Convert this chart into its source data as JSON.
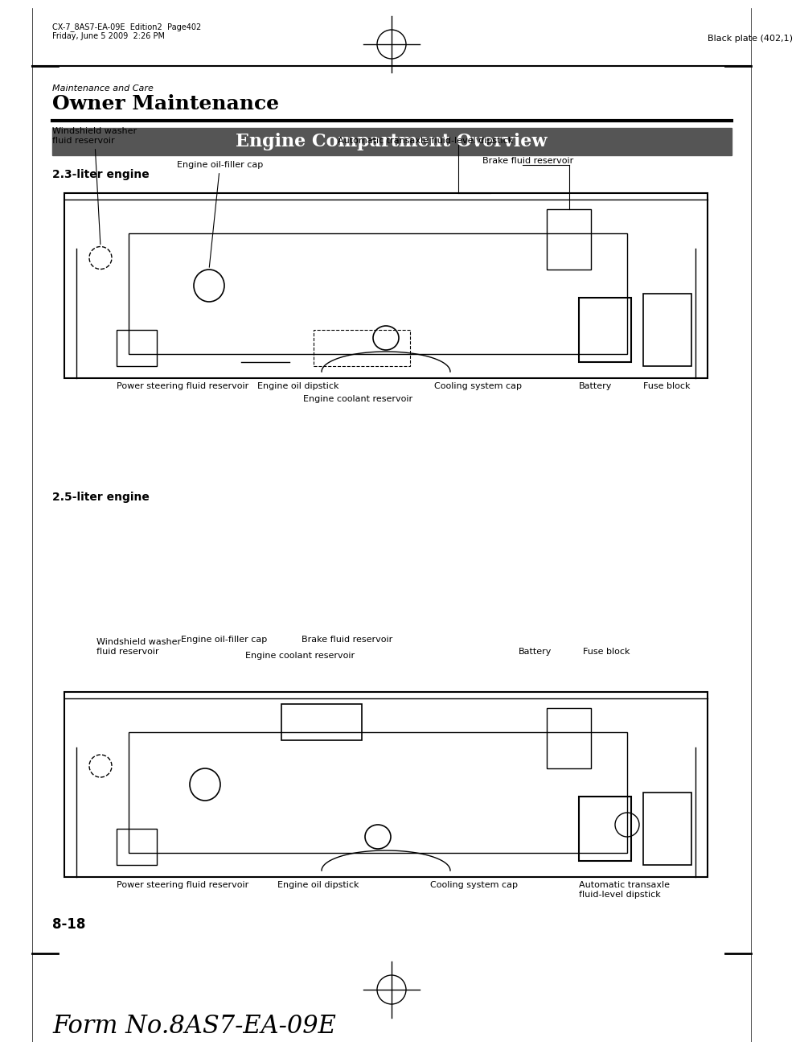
{
  "page_header_left_line1": "CX-7_8AS7-EA-09E  Edition2  Page402",
  "page_header_left_line2": "Friday, June 5 2009  2:26 PM",
  "page_header_right": "Black plate (402,1)",
  "section_label": "Maintenance and Care",
  "section_title": "Owner Maintenance",
  "banner_title": "Engine Compartment Overview",
  "banner_bg": "#555555",
  "banner_fg": "#ffffff",
  "engine1_heading": "2.3-liter engine",
  "engine1_labels": [
    "Windshield washer\nfluid reservoir",
    "Engine oil-filler cap",
    "Automatic transaxle fluid-level dipstick",
    "Brake fluid reservoir",
    "Power steering fluid reservoir",
    "Engine oil dipstick",
    "Engine coolant reservoir",
    "Cooling system cap",
    "Battery",
    "Fuse block"
  ],
  "engine2_heading": "2.5-liter engine",
  "engine2_labels": [
    "Windshield washer\nfluid reservoir",
    "Engine oil-filler cap",
    "Engine coolant reservoir",
    "Brake fluid reservoir",
    "Battery",
    "Fuse block",
    "Power steering fluid reservoir",
    "Engine oil dipstick",
    "Cooling system cap",
    "Automatic transaxle\nfluid-level dipstick"
  ],
  "page_number": "8-18",
  "footer_form": "Form No.8AS7-EA-09E",
  "bg_color": "#ffffff",
  "text_color": "#000000"
}
